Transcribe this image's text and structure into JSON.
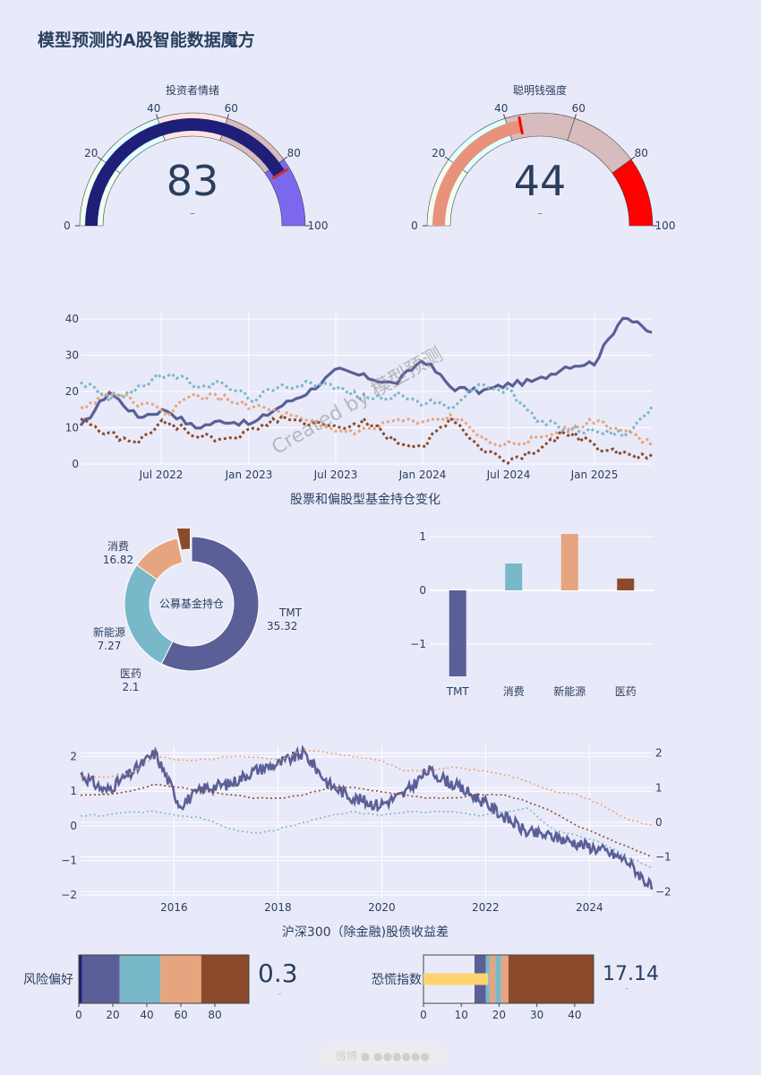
{
  "page": {
    "title": "模型预测的A股智能数据魔方",
    "watermark": "Created by 模型预测"
  },
  "colors": {
    "navy": "#1f1f7a",
    "purple": "#7b68ee",
    "slate": "#5b5f97",
    "teal": "#79b8c9",
    "peach": "#e6a57e",
    "brown": "#8b4a2b",
    "red": "#ff0000",
    "mauve": "#d6bcbc",
    "salmon": "#e8927c"
  },
  "gauges": [
    {
      "title": "投资者情绪",
      "value": "83",
      "delta": "–",
      "range": [
        0,
        100
      ],
      "ticks": [
        "0",
        "20",
        "40",
        "60",
        "80",
        "100"
      ],
      "needle_value": 83
    },
    {
      "title": "聪明钱强度",
      "value": "44",
      "delta": "–",
      "range": [
        0,
        100
      ],
      "ticks": [
        "0",
        "20",
        "40",
        "60",
        "80",
        "100"
      ],
      "needle_value": 44
    }
  ],
  "chart_data": [
    {
      "type": "line",
      "title": "股票和偏股型基金持仓变化",
      "x": [
        "2022-01",
        "2022-03",
        "2022-05",
        "2022-07",
        "2022-09",
        "2022-11",
        "2023-01",
        "2023-03",
        "2023-05",
        "2023-07",
        "2023-09",
        "2023-11",
        "2024-01",
        "2024-03",
        "2024-05",
        "2024-07",
        "2024-09",
        "2024-11",
        "2025-01",
        "2025-03",
        "2025-05"
      ],
      "xticks": [
        "Jul 2022",
        "Jan 2023",
        "Jul 2023",
        "Jan 2024",
        "Jul 2024",
        "Jan 2025"
      ],
      "yticks": [
        "0",
        "10",
        "20",
        "30",
        "40"
      ],
      "ylim": [
        0,
        42
      ],
      "series": [
        {
          "values": [
            10,
            20,
            13,
            15,
            10,
            12,
            11,
            16,
            20,
            26,
            24,
            22,
            29,
            21,
            20,
            22,
            23,
            27,
            28,
            41,
            36
          ]
        },
        {
          "values": [
            23,
            18,
            21,
            25,
            22,
            22,
            18,
            21,
            23,
            21,
            18,
            19,
            17,
            16,
            22,
            20,
            12,
            10,
            9,
            8,
            16
          ]
        },
        {
          "values": [
            15,
            20,
            17,
            14,
            19,
            18,
            16,
            14,
            11,
            9,
            9,
            12,
            11,
            13,
            8,
            5,
            7,
            10,
            12,
            9,
            6
          ]
        },
        {
          "values": [
            13,
            8,
            6,
            12,
            8,
            7,
            9,
            13,
            11,
            10,
            12,
            6,
            5,
            13,
            4,
            1,
            4,
            9,
            5,
            3,
            2
          ]
        }
      ]
    },
    {
      "type": "pie",
      "title": "公募基金持仓",
      "labels": [
        "TMT",
        "消费",
        "新能源",
        "医药"
      ],
      "values": [
        35.32,
        16.82,
        7.27,
        2.1
      ],
      "value_labels": [
        "35.32",
        "16.82",
        "7.27",
        "2.1"
      ]
    },
    {
      "type": "bar",
      "categories": [
        "TMT",
        "消费",
        "新能源",
        "医药"
      ],
      "values": [
        -1.6,
        0.5,
        1.05,
        0.22
      ],
      "yticks": [
        "−1",
        "0",
        "1"
      ],
      "ylim": [
        -1.65,
        1.15
      ]
    },
    {
      "type": "line",
      "title": "沪深300（除金融)股债收益差",
      "x": [
        2014.2,
        2014.8,
        2015.3,
        2015.6,
        2016.0,
        2016.5,
        2017.0,
        2017.4,
        2017.9,
        2018.4,
        2018.9,
        2019.3,
        2019.8,
        2020.3,
        2020.8,
        2021.3,
        2021.8,
        2022.3,
        2022.8,
        2023.3,
        2023.8,
        2024.3,
        2024.8,
        2025.2
      ],
      "xticks": [
        "2016",
        "2018",
        "2020",
        "2022",
        "2024"
      ],
      "yticks_left": [
        "−2",
        "−1",
        "0",
        "1",
        "2"
      ],
      "yticks_right": [
        "−2",
        "−1",
        "0",
        "1",
        "2"
      ],
      "ylim": [
        -2.1,
        2.3
      ],
      "series": [
        {
          "values": [
            1.5,
            1.0,
            1.5,
            2.1,
            0.6,
            1.1,
            1.2,
            1.6,
            1.8,
            2.1,
            1.2,
            0.8,
            0.6,
            0.9,
            1.6,
            1.2,
            0.8,
            0.3,
            -0.2,
            -0.3,
            -0.5,
            -0.7,
            -1.0,
            -1.8
          ]
        },
        {
          "values": [
            1.4,
            1.4,
            1.5,
            2.0,
            1.9,
            1.9,
            2.0,
            2.0,
            1.9,
            2.2,
            2.1,
            2.0,
            1.9,
            1.6,
            1.6,
            1.7,
            1.6,
            1.5,
            1.3,
            1.0,
            0.9,
            0.6,
            0.2,
            0.0
          ]
        },
        {
          "values": [
            0.9,
            0.9,
            1.0,
            1.2,
            1.1,
            1.0,
            0.9,
            0.8,
            0.8,
            0.9,
            1.1,
            1.1,
            1.0,
            0.9,
            0.8,
            0.8,
            0.9,
            0.9,
            0.7,
            0.4,
            0.0,
            -0.3,
            -0.6,
            -0.9
          ]
        },
        {
          "values": [
            0.3,
            0.3,
            0.4,
            0.4,
            0.3,
            0.2,
            -0.1,
            -0.2,
            -0.1,
            0.1,
            0.3,
            0.4,
            0.3,
            0.4,
            0.4,
            0.4,
            0.3,
            0.4,
            0.5,
            -0.1,
            -0.3,
            -0.5,
            -0.9,
            -1.2
          ]
        }
      ]
    }
  ],
  "bullets": [
    {
      "title": "风险偏好",
      "value": "0.3",
      "delta": "–",
      "range": [
        0,
        100
      ],
      "ticks": [
        "0",
        "20",
        "40",
        "60",
        "80"
      ],
      "bar_value": 0.3,
      "steps": [
        [
          0,
          2
        ],
        [
          2,
          24
        ],
        [
          24,
          48
        ],
        [
          48,
          72
        ],
        [
          72,
          100
        ]
      ],
      "step_colors": [
        "#1f1f7a",
        "#5b5f97",
        "#79b8c9",
        "#e6a57e",
        "#8b4a2b"
      ]
    },
    {
      "title": "恐慌指数",
      "value": "17.14",
      "delta": "–",
      "range": [
        0,
        45
      ],
      "ticks": [
        "0",
        "10",
        "20",
        "30",
        "40"
      ],
      "bar_value": 17.14,
      "steps": [
        [
          0,
          13.5
        ],
        [
          13.5,
          16.5
        ],
        [
          16.5,
          17.5
        ],
        [
          17.5,
          19
        ],
        [
          19,
          20.5
        ],
        [
          20.5,
          22.5
        ],
        [
          22.5,
          45
        ]
      ],
      "step_colors": [
        "#e9eaf9",
        "#5b5f97",
        "#79b8c9",
        "#e6a57e",
        "#79b8c9",
        "#e6a57e",
        "#8b4a2b"
      ]
    }
  ],
  "footer": {
    "text": "微博 ● ●●●●●●"
  }
}
